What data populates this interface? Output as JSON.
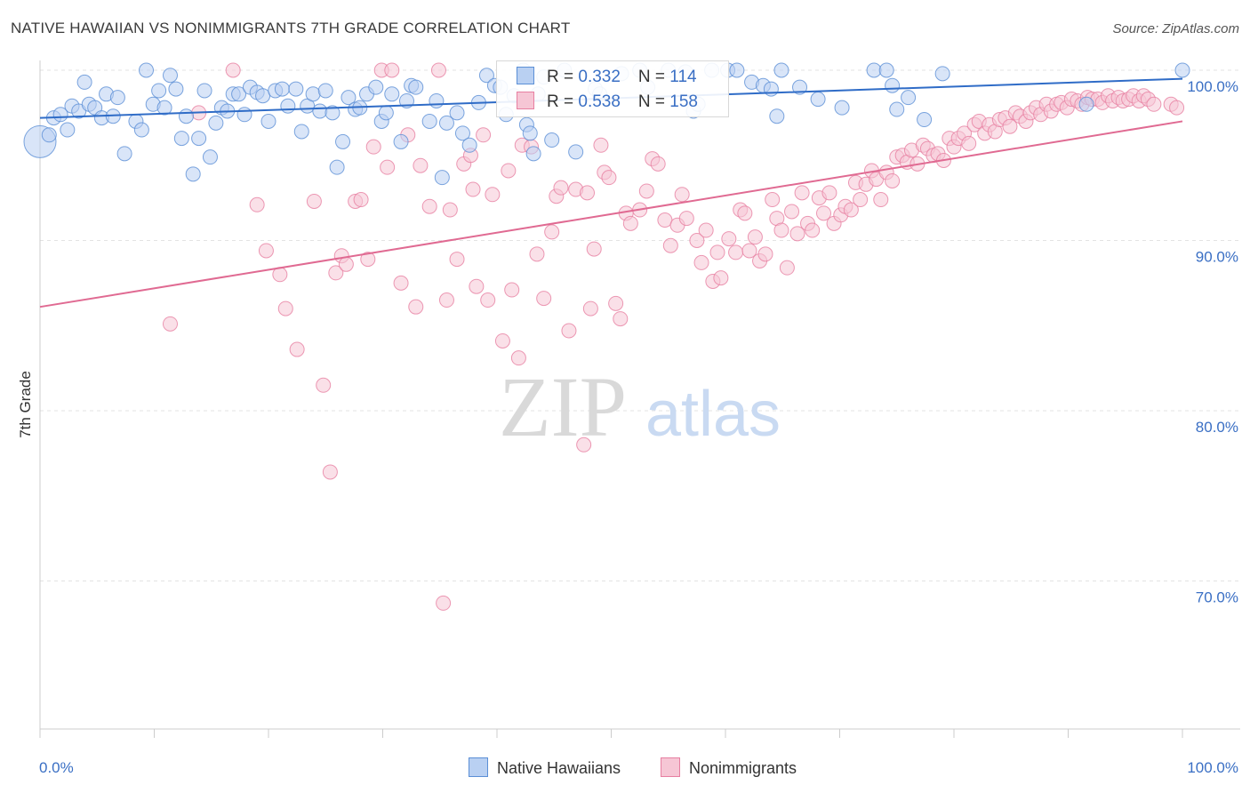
{
  "title": "NATIVE HAWAIIAN VS NONIMMIGRANTS 7TH GRADE CORRELATION CHART",
  "source": "Source: ZipAtlas.com",
  "watermark": {
    "zip": "ZIP",
    "atlas": "atlas"
  },
  "colors": {
    "blue": "#5b8fd6",
    "blue_fill": "#b9d0f2",
    "blue_line": "#2f6cc7",
    "pink": "#e77fa1",
    "pink_fill": "#f6c6d5",
    "pink_line": "#e06a92",
    "tick_label": "#3a6fc4"
  },
  "legend": {
    "rows": [
      {
        "r_label": "R = ",
        "r_value": "0.332",
        "n_label": "N = ",
        "n_value": "114"
      },
      {
        "r_label": "R = ",
        "r_value": "0.538",
        "n_label": "N = ",
        "n_value": "158"
      }
    ]
  },
  "bottom_legend": [
    "Native Hawaiians",
    "Nonimmigrants"
  ],
  "chart_data": {
    "type": "scatter",
    "title": "NATIVE HAWAIIAN VS NONIMMIGRANTS 7TH GRADE CORRELATION CHART",
    "xlabel": "",
    "ylabel": "7th Grade",
    "xlim": [
      0,
      100
    ],
    "ylim": [
      61,
      101.5
    ],
    "x_tick_labels": [
      "0.0%",
      "100.0%"
    ],
    "y_ticks": [
      70,
      80,
      90,
      100
    ],
    "y_tick_labels": [
      "70.0%",
      "80.0%",
      "90.0%",
      "100.0%"
    ],
    "grid": true,
    "legend_position": "top-center",
    "series": [
      {
        "name": "Native Hawaiians",
        "r": 0.332,
        "n": 114,
        "trend": [
          [
            0,
            97.2
          ],
          [
            100,
            99.5
          ]
        ],
        "points": [
          [
            0.0,
            95.8
          ],
          [
            0.8,
            96.2
          ],
          [
            1.2,
            97.2
          ],
          [
            1.8,
            97.4
          ],
          [
            2.4,
            96.5
          ],
          [
            2.8,
            97.9
          ],
          [
            3.4,
            97.6
          ],
          [
            3.9,
            99.3
          ],
          [
            4.3,
            98.0
          ],
          [
            4.8,
            97.8
          ],
          [
            5.4,
            97.2
          ],
          [
            5.8,
            98.6
          ],
          [
            6.4,
            97.3
          ],
          [
            6.8,
            98.4
          ],
          [
            7.4,
            95.1
          ],
          [
            8.4,
            97.0
          ],
          [
            8.9,
            96.5
          ],
          [
            9.3,
            100.0
          ],
          [
            9.9,
            98.0
          ],
          [
            10.4,
            98.8
          ],
          [
            10.9,
            97.8
          ],
          [
            11.4,
            99.7
          ],
          [
            11.9,
            98.9
          ],
          [
            12.4,
            96.0
          ],
          [
            12.8,
            97.3
          ],
          [
            13.4,
            93.9
          ],
          [
            13.9,
            96.0
          ],
          [
            14.4,
            98.8
          ],
          [
            14.9,
            94.9
          ],
          [
            15.4,
            96.9
          ],
          [
            15.9,
            97.8
          ],
          [
            16.4,
            97.6
          ],
          [
            16.9,
            98.6
          ],
          [
            17.4,
            98.6
          ],
          [
            17.9,
            97.4
          ],
          [
            18.4,
            99.0
          ],
          [
            19.0,
            98.7
          ],
          [
            19.5,
            98.5
          ],
          [
            20.0,
            97.0
          ],
          [
            20.6,
            98.8
          ],
          [
            21.2,
            98.9
          ],
          [
            21.7,
            97.9
          ],
          [
            22.4,
            98.9
          ],
          [
            22.9,
            96.4
          ],
          [
            23.4,
            97.9
          ],
          [
            23.9,
            98.6
          ],
          [
            24.5,
            97.6
          ],
          [
            25.0,
            98.8
          ],
          [
            25.6,
            97.5
          ],
          [
            26.0,
            94.3
          ],
          [
            26.5,
            95.8
          ],
          [
            27.0,
            98.4
          ],
          [
            27.6,
            97.7
          ],
          [
            28.0,
            97.8
          ],
          [
            28.6,
            98.6
          ],
          [
            29.4,
            99.0
          ],
          [
            29.9,
            97.0
          ],
          [
            30.3,
            97.5
          ],
          [
            30.8,
            98.6
          ],
          [
            31.6,
            95.8
          ],
          [
            32.1,
            98.2
          ],
          [
            32.5,
            99.1
          ],
          [
            32.9,
            99.0
          ],
          [
            34.1,
            97.0
          ],
          [
            34.7,
            98.2
          ],
          [
            35.2,
            93.7
          ],
          [
            35.6,
            96.9
          ],
          [
            36.5,
            97.5
          ],
          [
            37.0,
            96.3
          ],
          [
            37.6,
            95.6
          ],
          [
            38.4,
            98.1
          ],
          [
            39.1,
            99.7
          ],
          [
            39.8,
            99.1
          ],
          [
            40.3,
            99.0
          ],
          [
            40.8,
            97.4
          ],
          [
            41.5,
            98.5
          ],
          [
            42.3,
            100.0
          ],
          [
            42.6,
            96.8
          ],
          [
            42.9,
            96.3
          ],
          [
            43.2,
            95.1
          ],
          [
            43.6,
            98.6
          ],
          [
            44.1,
            99.6
          ],
          [
            44.8,
            95.9
          ],
          [
            45.9,
            100.0
          ],
          [
            46.9,
            95.2
          ],
          [
            48.6,
            98.9
          ],
          [
            49.0,
            98.6
          ],
          [
            50.9,
            99.8
          ],
          [
            52.5,
            100.0
          ],
          [
            53.2,
            99.0
          ],
          [
            55.0,
            100.0
          ],
          [
            56.5,
            99.9
          ],
          [
            57.2,
            97.6
          ],
          [
            57.6,
            98.0
          ],
          [
            58.8,
            100.0
          ],
          [
            60.2,
            100.0
          ],
          [
            61.0,
            100.0
          ],
          [
            62.3,
            99.3
          ],
          [
            63.3,
            99.1
          ],
          [
            64.0,
            98.9
          ],
          [
            64.5,
            97.3
          ],
          [
            64.9,
            100.0
          ],
          [
            66.5,
            99.0
          ],
          [
            68.1,
            98.3
          ],
          [
            70.2,
            97.8
          ],
          [
            73.0,
            100.0
          ],
          [
            74.1,
            100.0
          ],
          [
            74.6,
            99.1
          ],
          [
            75.0,
            97.7
          ],
          [
            76.0,
            98.4
          ],
          [
            77.4,
            97.1
          ],
          [
            79.0,
            99.8
          ],
          [
            91.6,
            98.0
          ],
          [
            100.0,
            100.0
          ]
        ]
      },
      {
        "name": "Nonimmigrants",
        "r": 0.538,
        "n": 158,
        "trend": [
          [
            0,
            86.1
          ],
          [
            100,
            97.0
          ]
        ],
        "points": [
          [
            11.4,
            85.1
          ],
          [
            13.9,
            97.5
          ],
          [
            16.9,
            100.0
          ],
          [
            19.0,
            92.1
          ],
          [
            19.8,
            89.4
          ],
          [
            21.0,
            88.0
          ],
          [
            21.5,
            86.0
          ],
          [
            22.5,
            83.6
          ],
          [
            24.0,
            92.3
          ],
          [
            24.8,
            81.5
          ],
          [
            25.4,
            76.4
          ],
          [
            25.9,
            88.1
          ],
          [
            26.4,
            89.1
          ],
          [
            26.8,
            88.6
          ],
          [
            27.6,
            92.3
          ],
          [
            28.1,
            92.4
          ],
          [
            28.7,
            88.9
          ],
          [
            29.2,
            95.5
          ],
          [
            29.9,
            100.0
          ],
          [
            30.4,
            94.3
          ],
          [
            30.8,
            100.0
          ],
          [
            31.6,
            87.5
          ],
          [
            32.2,
            96.2
          ],
          [
            32.9,
            86.1
          ],
          [
            33.3,
            94.4
          ],
          [
            34.1,
            92.0
          ],
          [
            34.9,
            100.0
          ],
          [
            35.3,
            68.7
          ],
          [
            35.6,
            86.5
          ],
          [
            35.9,
            91.8
          ],
          [
            36.5,
            88.9
          ],
          [
            37.1,
            94.5
          ],
          [
            37.7,
            95.0
          ],
          [
            37.9,
            93.0
          ],
          [
            38.2,
            87.3
          ],
          [
            38.8,
            96.2
          ],
          [
            39.2,
            86.5
          ],
          [
            39.6,
            92.7
          ],
          [
            40.5,
            84.1
          ],
          [
            41.0,
            94.1
          ],
          [
            41.3,
            87.1
          ],
          [
            41.9,
            83.1
          ],
          [
            42.2,
            95.6
          ],
          [
            43.0,
            95.5
          ],
          [
            43.5,
            89.2
          ],
          [
            44.1,
            86.6
          ],
          [
            44.8,
            90.5
          ],
          [
            45.2,
            92.6
          ],
          [
            45.6,
            93.1
          ],
          [
            46.3,
            84.7
          ],
          [
            46.9,
            93.0
          ],
          [
            47.6,
            78.0
          ],
          [
            47.9,
            92.8
          ],
          [
            48.2,
            86.0
          ],
          [
            48.5,
            89.5
          ],
          [
            49.1,
            95.6
          ],
          [
            49.4,
            94.0
          ],
          [
            49.8,
            93.7
          ],
          [
            50.4,
            86.3
          ],
          [
            50.8,
            85.4
          ],
          [
            51.3,
            91.6
          ],
          [
            51.7,
            91.0
          ],
          [
            52.5,
            91.8
          ],
          [
            53.1,
            92.9
          ],
          [
            53.6,
            94.8
          ],
          [
            54.1,
            94.5
          ],
          [
            54.7,
            91.2
          ],
          [
            55.2,
            89.7
          ],
          [
            55.8,
            90.9
          ],
          [
            56.2,
            92.7
          ],
          [
            56.6,
            91.3
          ],
          [
            57.5,
            90.0
          ],
          [
            57.9,
            88.7
          ],
          [
            58.3,
            90.6
          ],
          [
            58.9,
            87.6
          ],
          [
            59.3,
            89.3
          ],
          [
            59.6,
            87.8
          ],
          [
            60.3,
            90.1
          ],
          [
            60.9,
            89.3
          ],
          [
            61.3,
            91.8
          ],
          [
            61.7,
            91.6
          ],
          [
            62.1,
            89.4
          ],
          [
            62.6,
            90.2
          ],
          [
            63.0,
            88.8
          ],
          [
            63.5,
            89.2
          ],
          [
            64.1,
            92.4
          ],
          [
            64.5,
            91.3
          ],
          [
            64.9,
            90.6
          ],
          [
            65.4,
            88.4
          ],
          [
            65.8,
            91.7
          ],
          [
            66.3,
            90.4
          ],
          [
            66.7,
            92.8
          ],
          [
            67.2,
            91.0
          ],
          [
            67.6,
            90.6
          ],
          [
            68.2,
            92.5
          ],
          [
            68.6,
            91.6
          ],
          [
            69.1,
            92.8
          ],
          [
            69.5,
            91.0
          ],
          [
            70.1,
            91.5
          ],
          [
            70.5,
            92.0
          ],
          [
            71.0,
            91.8
          ],
          [
            71.4,
            93.4
          ],
          [
            71.8,
            92.4
          ],
          [
            72.3,
            93.3
          ],
          [
            72.8,
            94.1
          ],
          [
            73.2,
            93.6
          ],
          [
            73.6,
            92.4
          ],
          [
            74.1,
            94.0
          ],
          [
            74.6,
            93.5
          ],
          [
            75.0,
            94.9
          ],
          [
            75.5,
            95.0
          ],
          [
            75.9,
            94.6
          ],
          [
            76.3,
            95.3
          ],
          [
            76.8,
            94.5
          ],
          [
            77.3,
            95.6
          ],
          [
            77.7,
            95.4
          ],
          [
            78.2,
            95.0
          ],
          [
            78.6,
            95.1
          ],
          [
            79.1,
            94.7
          ],
          [
            79.6,
            96.0
          ],
          [
            80.0,
            95.5
          ],
          [
            80.4,
            96.0
          ],
          [
            80.9,
            96.3
          ],
          [
            81.3,
            95.7
          ],
          [
            81.8,
            96.8
          ],
          [
            82.2,
            97.0
          ],
          [
            82.7,
            96.3
          ],
          [
            83.1,
            96.8
          ],
          [
            83.6,
            96.4
          ],
          [
            84.0,
            97.1
          ],
          [
            84.5,
            97.2
          ],
          [
            84.9,
            96.7
          ],
          [
            85.4,
            97.5
          ],
          [
            85.8,
            97.3
          ],
          [
            86.3,
            97.0
          ],
          [
            86.7,
            97.5
          ],
          [
            87.2,
            97.8
          ],
          [
            87.6,
            97.4
          ],
          [
            88.1,
            98.0
          ],
          [
            88.5,
            97.6
          ],
          [
            89.0,
            98.0
          ],
          [
            89.4,
            98.1
          ],
          [
            89.9,
            97.8
          ],
          [
            90.3,
            98.3
          ],
          [
            90.8,
            98.2
          ],
          [
            91.2,
            98.0
          ],
          [
            91.7,
            98.4
          ],
          [
            92.1,
            98.3
          ],
          [
            92.6,
            98.3
          ],
          [
            93.0,
            98.1
          ],
          [
            93.5,
            98.5
          ],
          [
            93.9,
            98.2
          ],
          [
            94.4,
            98.4
          ],
          [
            94.8,
            98.2
          ],
          [
            95.3,
            98.3
          ],
          [
            95.7,
            98.5
          ],
          [
            96.2,
            98.2
          ],
          [
            96.6,
            98.5
          ],
          [
            97.0,
            98.3
          ],
          [
            97.5,
            98.0
          ],
          [
            99.0,
            98.0
          ],
          [
            99.5,
            97.8
          ]
        ]
      }
    ]
  }
}
